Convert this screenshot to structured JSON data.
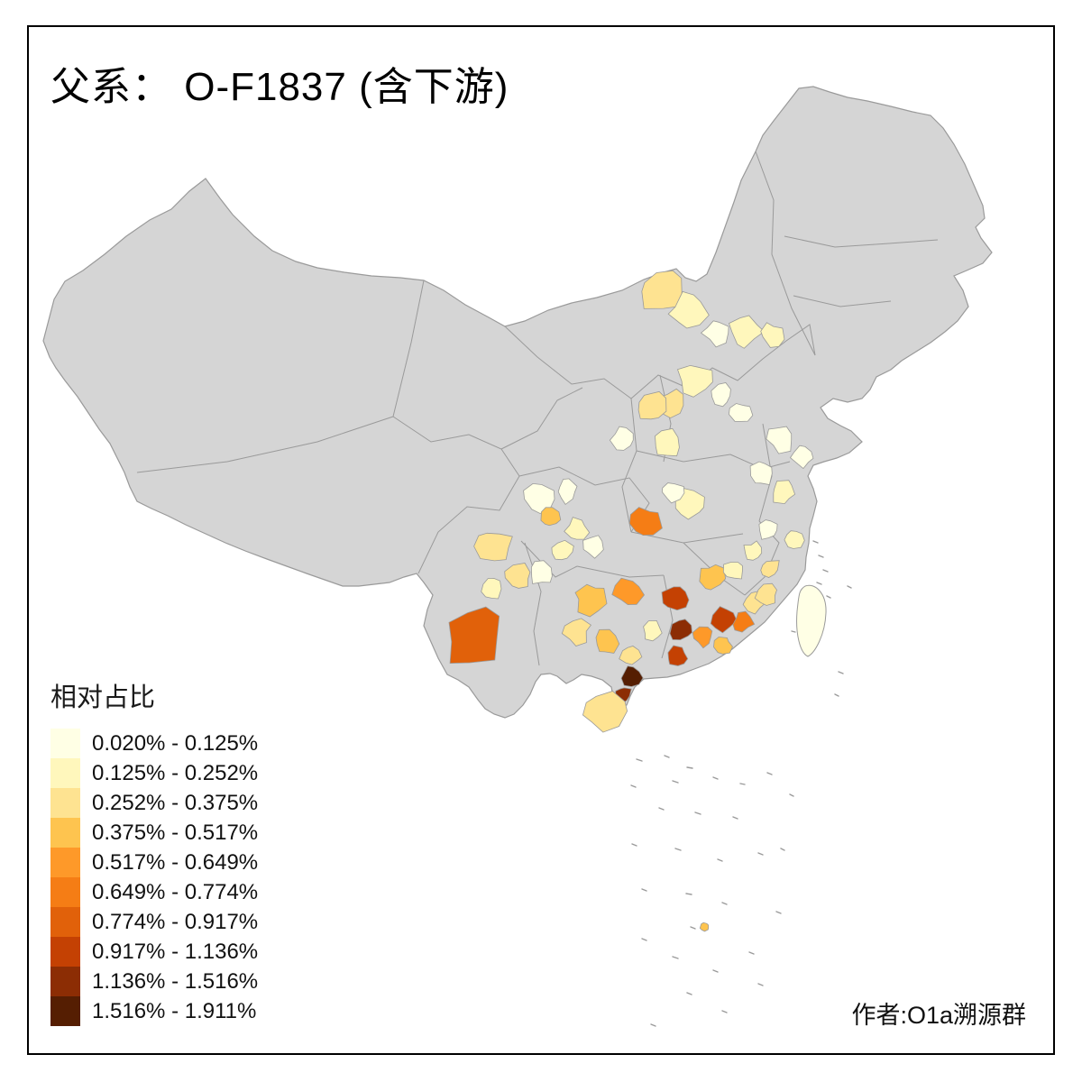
{
  "title": "父系： O-F1837 (含下游)",
  "legend": {
    "title": "相对占比",
    "items": [
      {
        "label": "0.020% - 0.125%",
        "color": "#ffffe5"
      },
      {
        "label": "0.125% - 0.252%",
        "color": "#fff7bc"
      },
      {
        "label": "0.252% - 0.375%",
        "color": "#fee391"
      },
      {
        "label": "0.375% - 0.517%",
        "color": "#fec44f"
      },
      {
        "label": "0.517% - 0.649%",
        "color": "#fe9929"
      },
      {
        "label": "0.649% - 0.774%",
        "color": "#f57d15"
      },
      {
        "label": "0.774% - 0.917%",
        "color": "#e1610a"
      },
      {
        "label": "0.917% - 1.136%",
        "color": "#c44103"
      },
      {
        "label": "1.136% - 1.516%",
        "color": "#8c2d04"
      },
      {
        "label": "1.516% - 1.911%",
        "color": "#551e02"
      }
    ]
  },
  "attribution": "作者:O1a溯源群",
  "map": {
    "base_fill": "#d5d5d5",
    "boundary_color": "#9a9a9a",
    "background": "#ffffff",
    "frame_color": "#000000"
  }
}
